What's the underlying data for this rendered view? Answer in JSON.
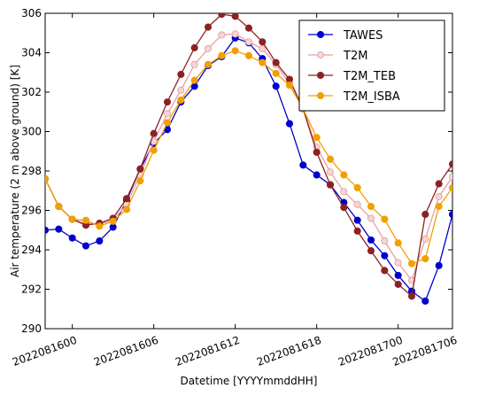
{
  "chart_data": {
    "type": "line",
    "title": "",
    "xlabel": "Datetime [YYYYmmddHH]",
    "ylabel": "Air temperature (2 m above ground) [K]",
    "ylim": [
      290,
      306
    ],
    "yticks": [
      290,
      292,
      294,
      296,
      298,
      300,
      302,
      304,
      306
    ],
    "xlim": [
      0,
      30
    ],
    "xticks": [
      {
        "x": 2,
        "label": "2022081600"
      },
      {
        "x": 8,
        "label": "2022081606"
      },
      {
        "x": 14,
        "label": "2022081612"
      },
      {
        "x": 20,
        "label": "2022081618"
      },
      {
        "x": 26,
        "label": "2022081700"
      },
      {
        "x": 32,
        "label": "2022081706"
      }
    ],
    "grid": false,
    "legend_position": "top-right",
    "x": [
      0,
      1,
      2,
      3,
      4,
      5,
      6,
      7,
      8,
      9,
      10,
      11,
      12,
      13,
      14,
      15,
      16,
      17,
      18,
      19,
      20,
      21,
      22,
      23,
      24,
      25,
      26,
      27,
      28,
      29,
      30
    ],
    "series": [
      {
        "name": "TAWES",
        "color": "#0000cc",
        "marker_fill": "#0000cc",
        "values": [
          295.0,
          295.05,
          294.6,
          294.2,
          294.45,
          295.15,
          296.5,
          298.1,
          299.4,
          300.1,
          301.5,
          302.3,
          303.35,
          303.8,
          304.75,
          304.5,
          303.7,
          302.3,
          300.4,
          298.3,
          297.8,
          297.3,
          296.4,
          295.5,
          294.5,
          293.7,
          292.7,
          291.9,
          291.4,
          293.2,
          295.8
        ]
      },
      {
        "name": "T2M",
        "color": "#e8a0a0",
        "marker_fill": "#f5d5d8",
        "values": [
          297.6,
          296.2,
          295.55,
          295.35,
          295.3,
          295.5,
          296.3,
          297.8,
          299.5,
          300.9,
          302.1,
          303.4,
          304.2,
          304.9,
          304.95,
          304.55,
          304.2,
          303.4,
          302.45,
          301.15,
          299.2,
          297.95,
          296.95,
          296.3,
          295.6,
          294.45,
          293.35,
          292.45,
          294.55,
          296.7,
          297.7
        ]
      },
      {
        "name": "T2M_TEB",
        "color": "#8b2222",
        "marker_fill": "#8b2222",
        "values": [
          297.6,
          296.2,
          295.55,
          295.25,
          295.35,
          295.6,
          296.6,
          298.1,
          299.9,
          301.5,
          302.9,
          304.25,
          305.3,
          305.95,
          305.85,
          305.25,
          304.55,
          303.5,
          302.65,
          301.15,
          298.95,
          297.3,
          296.15,
          294.95,
          293.95,
          292.95,
          292.25,
          291.65,
          295.8,
          297.35,
          298.35
        ]
      },
      {
        "name": "T2M_ISBA",
        "color": "#f0a000",
        "marker_fill": "#f0a000",
        "values": [
          297.6,
          296.2,
          295.55,
          295.5,
          295.2,
          295.45,
          296.05,
          297.5,
          299.05,
          300.45,
          301.6,
          302.6,
          303.4,
          303.85,
          304.1,
          303.85,
          303.5,
          302.95,
          302.35,
          301.15,
          299.7,
          298.6,
          297.8,
          297.15,
          296.2,
          295.55,
          294.35,
          293.3,
          293.55,
          296.2,
          297.15
        ]
      }
    ]
  }
}
